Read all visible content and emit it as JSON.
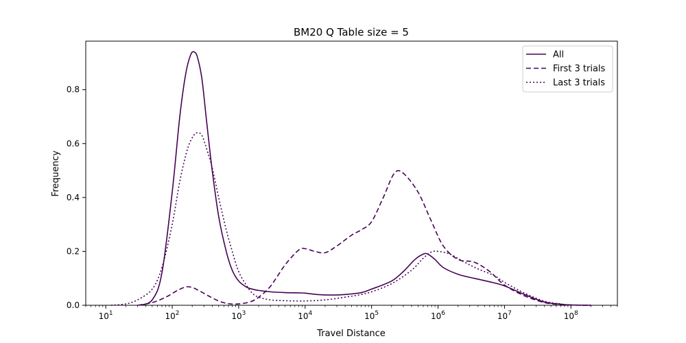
{
  "chart_data": {
    "type": "line",
    "title": "BM20 Q Table size = 5",
    "xlabel": "Travel Distance",
    "ylabel": "Frequency",
    "xscale": "log",
    "xlim": [
      5,
      500000000
    ],
    "ylim": [
      0,
      0.98
    ],
    "x_ticks": [
      {
        "value": 10,
        "base": "10",
        "exp": "1"
      },
      {
        "value": 100,
        "base": "10",
        "exp": "2"
      },
      {
        "value": 1000,
        "base": "10",
        "exp": "3"
      },
      {
        "value": 10000,
        "base": "10",
        "exp": "4"
      },
      {
        "value": 100000,
        "base": "10",
        "exp": "5"
      },
      {
        "value": 1000000,
        "base": "10",
        "exp": "6"
      },
      {
        "value": 10000000,
        "base": "10",
        "exp": "7"
      },
      {
        "value": 100000000,
        "base": "10",
        "exp": "8"
      }
    ],
    "y_ticks": [
      {
        "value": 0.0,
        "label": "0.0"
      },
      {
        "value": 0.2,
        "label": "0.2"
      },
      {
        "value": 0.4,
        "label": "0.4"
      },
      {
        "value": 0.6,
        "label": "0.6"
      },
      {
        "value": 0.8,
        "label": "0.8"
      }
    ],
    "grid": false,
    "legend_position": "top-right",
    "color": "#440154",
    "series": [
      {
        "name": "All",
        "style": "solid",
        "x": [
          32,
          50,
          70,
          100,
          130,
          160,
          190,
          215,
          240,
          280,
          330,
          400,
          500,
          650,
          800,
          1000,
          1300,
          1600,
          2000,
          3000,
          5000,
          8000,
          10000,
          15000,
          25000,
          40000,
          70000,
          100000,
          200000,
          300000,
          450000,
          600000,
          700000,
          900000,
          1200000,
          2000000,
          3500000,
          6000000,
          10000000,
          20000000,
          40000000,
          70000000,
          100000000,
          200000000
        ],
        "y": [
          0.0,
          0.02,
          0.12,
          0.42,
          0.7,
          0.86,
          0.93,
          0.94,
          0.92,
          0.84,
          0.68,
          0.5,
          0.33,
          0.2,
          0.13,
          0.09,
          0.068,
          0.06,
          0.055,
          0.05,
          0.047,
          0.046,
          0.045,
          0.04,
          0.038,
          0.04,
          0.047,
          0.06,
          0.09,
          0.125,
          0.17,
          0.19,
          0.19,
          0.17,
          0.14,
          0.115,
          0.1,
          0.087,
          0.072,
          0.04,
          0.012,
          0.004,
          0.001,
          0.0
        ]
      },
      {
        "name": "First 3 trials",
        "style": "dashed",
        "x": [
          30,
          50,
          80,
          120,
          160,
          200,
          250,
          350,
          500,
          700,
          1000,
          1500,
          2000,
          3000,
          5000,
          8000,
          10000,
          14000,
          20000,
          30000,
          50000,
          70000,
          100000,
          150000,
          220000,
          300000,
          500000,
          800000,
          1200000,
          2000000,
          3500000,
          6000000,
          10000000,
          20000000,
          40000000,
          70000000,
          100000000,
          200000000
        ],
        "y": [
          0.0,
          0.01,
          0.03,
          0.055,
          0.068,
          0.066,
          0.055,
          0.035,
          0.016,
          0.006,
          0.005,
          0.013,
          0.03,
          0.07,
          0.15,
          0.205,
          0.21,
          0.2,
          0.195,
          0.22,
          0.26,
          0.28,
          0.31,
          0.4,
          0.49,
          0.49,
          0.42,
          0.31,
          0.22,
          0.17,
          0.16,
          0.125,
          0.075,
          0.035,
          0.01,
          0.003,
          0.001,
          0.0
        ]
      },
      {
        "name": "Last 3 trials",
        "style": "dotted",
        "x": [
          12,
          20,
          30,
          50,
          70,
          100,
          130,
          170,
          210,
          240,
          280,
          330,
          400,
          500,
          650,
          800,
          1000,
          1300,
          1600,
          2000,
          3000,
          5000,
          10000,
          20000,
          40000,
          70000,
          100000,
          200000,
          400000,
          600000,
          800000,
          1000000,
          1500000,
          2500000,
          4000000,
          7000000,
          10000000,
          20000000,
          40000000,
          70000000,
          100000000,
          200000000
        ],
        "y": [
          0.0,
          0.005,
          0.02,
          0.06,
          0.14,
          0.3,
          0.46,
          0.58,
          0.63,
          0.64,
          0.63,
          0.58,
          0.51,
          0.4,
          0.28,
          0.2,
          0.125,
          0.075,
          0.045,
          0.03,
          0.02,
          0.017,
          0.016,
          0.02,
          0.03,
          0.04,
          0.05,
          0.08,
          0.13,
          0.175,
          0.198,
          0.2,
          0.19,
          0.16,
          0.135,
          0.11,
          0.085,
          0.045,
          0.015,
          0.005,
          0.001,
          0.0
        ]
      }
    ]
  }
}
